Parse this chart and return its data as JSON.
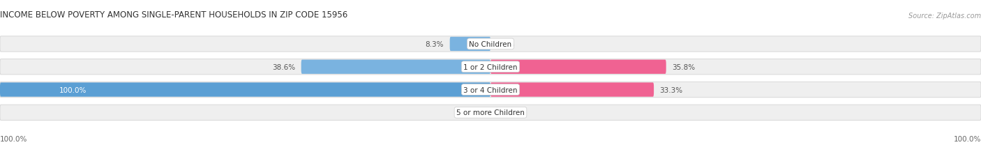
{
  "title": "INCOME BELOW POVERTY AMONG SINGLE-PARENT HOUSEHOLDS IN ZIP CODE 15956",
  "source": "Source: ZipAtlas.com",
  "categories": [
    "No Children",
    "1 or 2 Children",
    "3 or 4 Children",
    "5 or more Children"
  ],
  "single_father": [
    8.3,
    38.6,
    100.0,
    0.0
  ],
  "single_mother": [
    0.0,
    35.8,
    33.3,
    0.0
  ],
  "father_color": "#7ab3e0",
  "father_color_full": "#5b9fd4",
  "mother_color_light": "#f9a8c9",
  "mother_color_full": "#f06292",
  "bar_bg_color": "#efefef",
  "bar_bg_border": "#d8d8d8",
  "max_val": 100.0,
  "axis_label_left": "100.0%",
  "axis_label_right": "100.0%",
  "title_fontsize": 8.5,
  "source_fontsize": 7,
  "label_fontsize": 7.5,
  "legend_fontsize": 8
}
